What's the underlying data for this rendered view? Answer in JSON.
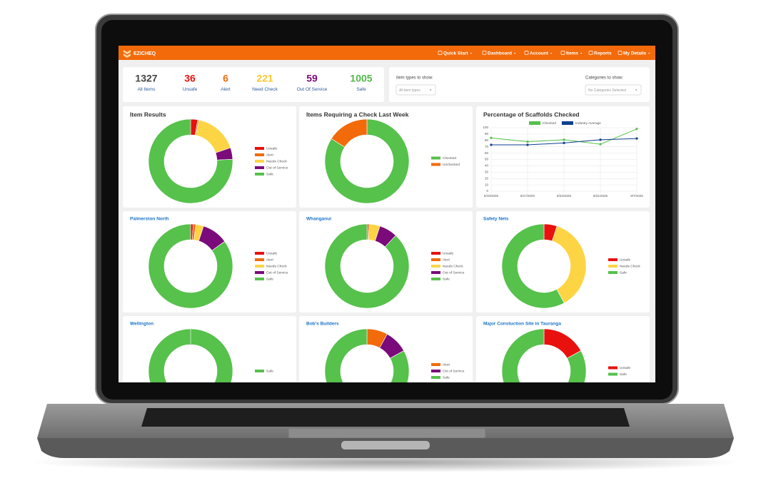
{
  "nav": {
    "brand": "EZICHEQ",
    "items": [
      "Quick Start",
      "Dashboard",
      "Account",
      "Items",
      "Reports",
      "My Details"
    ]
  },
  "stats": [
    {
      "value": 1327,
      "label": "All Items",
      "color": "#444444"
    },
    {
      "value": 36,
      "label": "Unsafe",
      "color": "#e8110e"
    },
    {
      "value": 6,
      "label": "Alert",
      "color": "#f26a0a"
    },
    {
      "value": 221,
      "label": "Need Check",
      "color": "#f7c630"
    },
    {
      "value": 59,
      "label": "Out Of Service",
      "color": "#7b0a7b"
    },
    {
      "value": 1005,
      "label": "Safe",
      "color": "#4fb947"
    }
  ],
  "filters": [
    {
      "label": "Item types to show:",
      "selected": "All item types"
    },
    {
      "label": "Categories to show:",
      "selected": "No Categories Selected"
    }
  ],
  "chart_data": [
    {
      "type": "donut",
      "title": "Item Results",
      "categories": [
        "Unsafe",
        "Alert",
        "Needs Check",
        "Out of Service",
        "Safe"
      ],
      "values": [
        36,
        6,
        221,
        59,
        1005
      ],
      "colors": [
        "#e8110e",
        "#f26a0a",
        "#fdd444",
        "#7b0a7b",
        "#56c14b"
      ]
    },
    {
      "type": "donut",
      "title": "Items Requiring a Check Last Week",
      "categories": [
        "Checked",
        "Unchecked"
      ],
      "values": [
        84,
        16
      ],
      "colors": [
        "#56c14b",
        "#f26a0a"
      ]
    },
    {
      "type": "line",
      "title": "Percentage of Scaffolds Checked",
      "categories": [
        "8/10/2025",
        "8/17/2025",
        "8/24/2025",
        "8/31/2025",
        "9/7/2025"
      ],
      "series": [
        {
          "name": "Checked",
          "color": "#56c14b",
          "values": [
            84,
            78,
            81,
            74,
            98
          ]
        },
        {
          "name": "Industry Average",
          "color": "#0b3f8f",
          "values": [
            73,
            73,
            76,
            81,
            83
          ]
        }
      ],
      "ylim": [
        0,
        100
      ],
      "yticks": [
        0,
        10,
        20,
        30,
        40,
        50,
        60,
        70,
        80,
        90,
        100
      ],
      "grid": true
    },
    {
      "type": "donut",
      "title": "Palmerston North",
      "categories": [
        "Unsafe",
        "Alert",
        "Needs Check",
        "Out of Service",
        "Safe"
      ],
      "values": [
        1,
        1,
        3,
        10,
        85
      ],
      "colors": [
        "#e8110e",
        "#f26a0a",
        "#fdd444",
        "#7b0a7b",
        "#56c14b"
      ]
    },
    {
      "type": "donut",
      "title": "Whanganui",
      "categories": [
        "Unsafe",
        "Alert",
        "Needs Check",
        "Out of Service",
        "Safe"
      ],
      "values": [
        0.5,
        0.5,
        4,
        7,
        88
      ],
      "colors": [
        "#e8110e",
        "#f26a0a",
        "#fdd444",
        "#7b0a7b",
        "#56c14b"
      ]
    },
    {
      "type": "donut",
      "title": "Safety Nets",
      "categories": [
        "Unsafe",
        "Needs Check",
        "Safe"
      ],
      "values": [
        5,
        37,
        58
      ],
      "colors": [
        "#e8110e",
        "#fdd444",
        "#56c14b"
      ]
    },
    {
      "type": "donut",
      "title": "Wellington",
      "categories": [
        "Safe"
      ],
      "values": [
        100
      ],
      "colors": [
        "#56c14b"
      ]
    },
    {
      "type": "donut",
      "title": "Bob's Builders",
      "categories": [
        "Alert",
        "Out of Service",
        "Safe"
      ],
      "values": [
        8,
        9,
        83
      ],
      "colors": [
        "#f26a0a",
        "#7b0a7b",
        "#56c14b"
      ]
    },
    {
      "type": "donut",
      "title": "Major Constuction Site in Tauranga",
      "categories": [
        "Unsafe",
        "Safe"
      ],
      "values": [
        17,
        83
      ],
      "colors": [
        "#e8110e",
        "#56c14b"
      ]
    }
  ]
}
